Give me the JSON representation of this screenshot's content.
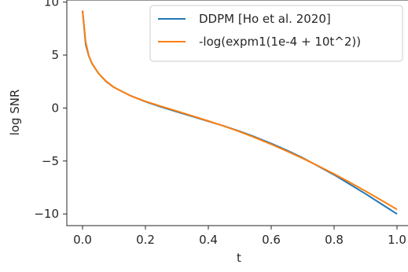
{
  "chart_data": {
    "type": "line",
    "xlabel": "t",
    "ylabel": "log SNR",
    "xlim": [
      -0.05,
      1.05
    ],
    "ylim": [
      -11.1,
      10.2
    ],
    "xticks": [
      0.0,
      0.2,
      0.4,
      0.6,
      0.8,
      1.0
    ],
    "xtick_labels": [
      "0.0",
      "0.2",
      "0.4",
      "0.6",
      "0.8",
      "1.0"
    ],
    "yticks": [
      -10,
      -5,
      0,
      5,
      10
    ],
    "ytick_labels": [
      "−10",
      "−5",
      "0",
      "5",
      "10"
    ],
    "grid": false,
    "legend_position": "top-right",
    "series": [
      {
        "name": "DDPM [Ho et al. 2020]",
        "color": "#1f77b4",
        "x": [
          0.0,
          0.01,
          0.02,
          0.03,
          0.05,
          0.075,
          0.1,
          0.15,
          0.2,
          0.25,
          0.3,
          0.35,
          0.4,
          0.45,
          0.5,
          0.55,
          0.6,
          0.65,
          0.7,
          0.75,
          0.8,
          0.85,
          0.9,
          0.95,
          1.0
        ],
        "values": [
          9.2,
          6.0,
          4.9,
          4.2,
          3.3,
          2.5,
          1.95,
          1.2,
          0.6,
          0.1,
          -0.35,
          -0.8,
          -1.25,
          -1.7,
          -2.2,
          -2.75,
          -3.35,
          -4.0,
          -4.7,
          -5.5,
          -6.3,
          -7.2,
          -8.1,
          -9.05,
          -10.0
        ]
      },
      {
        "name": "-log(expm1(1e-4 + 10t^2))",
        "color": "#ff7f0e",
        "x": [
          0.0,
          0.01,
          0.02,
          0.03,
          0.05,
          0.075,
          0.1,
          0.15,
          0.2,
          0.25,
          0.3,
          0.35,
          0.4,
          0.45,
          0.5,
          0.55,
          0.6,
          0.65,
          0.7,
          0.75,
          0.8,
          0.85,
          0.9,
          0.95,
          1.0
        ],
        "values": [
          9.21,
          6.22,
          4.93,
          4.22,
          3.3,
          2.53,
          1.96,
          1.19,
          0.63,
          0.16,
          -0.29,
          -0.75,
          -1.22,
          -1.71,
          -2.24,
          -2.81,
          -3.42,
          -4.07,
          -4.75,
          -5.47,
          -6.22,
          -7.02,
          -7.84,
          -8.7,
          -9.57
        ]
      }
    ]
  }
}
